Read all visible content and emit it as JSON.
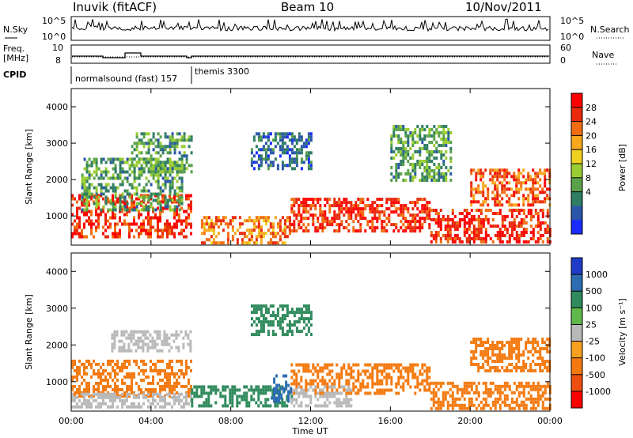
{
  "header": {
    "station": "Inuvik (fitACF)",
    "beam": "Beam 10",
    "date": "10/Nov/2011"
  },
  "top_panels": {
    "nsky_label": "N.Sky",
    "nsearch_label": "N.Search",
    "nsky_ticks": [
      "10^5",
      "10^0"
    ],
    "nsearch_ticks": [
      "10^5",
      "10^0"
    ],
    "freq_label_1": "Freq.",
    "freq_label_2": "[MHz]",
    "freq_ticks": [
      "10",
      "8"
    ],
    "nave_label": "Nave",
    "nave_ticks": [
      "60",
      "0"
    ],
    "cpid_label": "CPID",
    "cpid_modes": [
      {
        "label": "normalsound (fast) 157",
        "start_hour": 0
      },
      {
        "label": "themis 3300",
        "start_hour": 6.2
      }
    ]
  },
  "chart_data": [
    {
      "type": "heatmap",
      "name": "Power",
      "ylabel": "Slant Range [km]",
      "yticks": [
        "1000",
        "2000",
        "3000",
        "4000"
      ],
      "ylim": [
        200,
        4500
      ],
      "xlim": [
        0,
        24
      ],
      "colorbar_label": "Power [dB]",
      "colorbar_ticks": [
        "4",
        "8",
        "12",
        "16",
        "20",
        "24",
        "28"
      ],
      "colorbar_colors": [
        "#1a2cff",
        "#2a55a8",
        "#2f7d63",
        "#5aa24a",
        "#9acd32",
        "#f0d020",
        "#f7a81c",
        "#f26d11",
        "#e92a0c",
        "#ff0000"
      ],
      "regions": [
        {
          "t0": 0,
          "t1": 6,
          "r0": 400,
          "r1": 1600,
          "value": 28
        },
        {
          "t0": 0.5,
          "t1": 5.5,
          "r0": 1200,
          "r1": 2600,
          "value": 12
        },
        {
          "t0": 6.5,
          "t1": 11,
          "r0": 300,
          "r1": 1000,
          "value": 24
        },
        {
          "t0": 11,
          "t1": 18,
          "r0": 600,
          "r1": 1500,
          "value": 28
        },
        {
          "t0": 18,
          "t1": 24,
          "r0": 300,
          "r1": 1200,
          "value": 28
        },
        {
          "t0": 20,
          "t1": 24,
          "r0": 1300,
          "r1": 2300,
          "value": 26
        },
        {
          "t0": 3,
          "t1": 6,
          "r0": 2200,
          "r1": 3300,
          "value": 12
        },
        {
          "t0": 9,
          "t1": 12,
          "r0": 2300,
          "r1": 3300,
          "value": 8
        },
        {
          "t0": 16,
          "t1": 19,
          "r0": 2000,
          "r1": 3500,
          "value": 12
        }
      ]
    },
    {
      "type": "heatmap",
      "name": "Velocity",
      "ylabel": "Slant Range [km]",
      "yticks": [
        "1000",
        "2000",
        "3000",
        "4000"
      ],
      "ylim": [
        200,
        4500
      ],
      "xlim": [
        0,
        24
      ],
      "xlabel": "Time UT",
      "xticks": [
        "00:00",
        "04:00",
        "08:00",
        "12:00",
        "16:00",
        "20:00",
        "00:00"
      ],
      "colorbar_label": "Velocity [m s⁻¹]",
      "colorbar_ticks": [
        "1000",
        "500",
        "100",
        "25",
        "-25",
        "-100",
        "-500",
        "-1000"
      ],
      "colorbar_colors": [
        "#1f3cc8",
        "#2c6cb0",
        "#2f8a5c",
        "#5fb84a",
        "#b9b9b9",
        "#f7a020",
        "#f47a10",
        "#ee4f0e",
        "#ff0000"
      ],
      "regions": [
        {
          "t0": 0,
          "t1": 6,
          "r0": 600,
          "r1": 1600,
          "value": -300
        },
        {
          "t0": 0,
          "t1": 6,
          "r0": 300,
          "r1": 700,
          "value": 0
        },
        {
          "t0": 6,
          "t1": 11,
          "r0": 300,
          "r1": 900,
          "value": 150
        },
        {
          "t0": 11,
          "t1": 18,
          "r0": 700,
          "r1": 1500,
          "value": -300
        },
        {
          "t0": 11,
          "t1": 14,
          "r0": 300,
          "r1": 900,
          "value": 0
        },
        {
          "t0": 18,
          "t1": 24,
          "r0": 300,
          "r1": 1000,
          "value": -400
        },
        {
          "t0": 20,
          "t1": 24,
          "r0": 1300,
          "r1": 2200,
          "value": -400
        },
        {
          "t0": 2,
          "t1": 6,
          "r0": 1800,
          "r1": 2400,
          "value": 0
        },
        {
          "t0": 9,
          "t1": 12,
          "r0": 2300,
          "r1": 3100,
          "value": 150
        },
        {
          "t0": 10,
          "t1": 11,
          "r0": 500,
          "r1": 1200,
          "value": 800
        }
      ]
    }
  ]
}
